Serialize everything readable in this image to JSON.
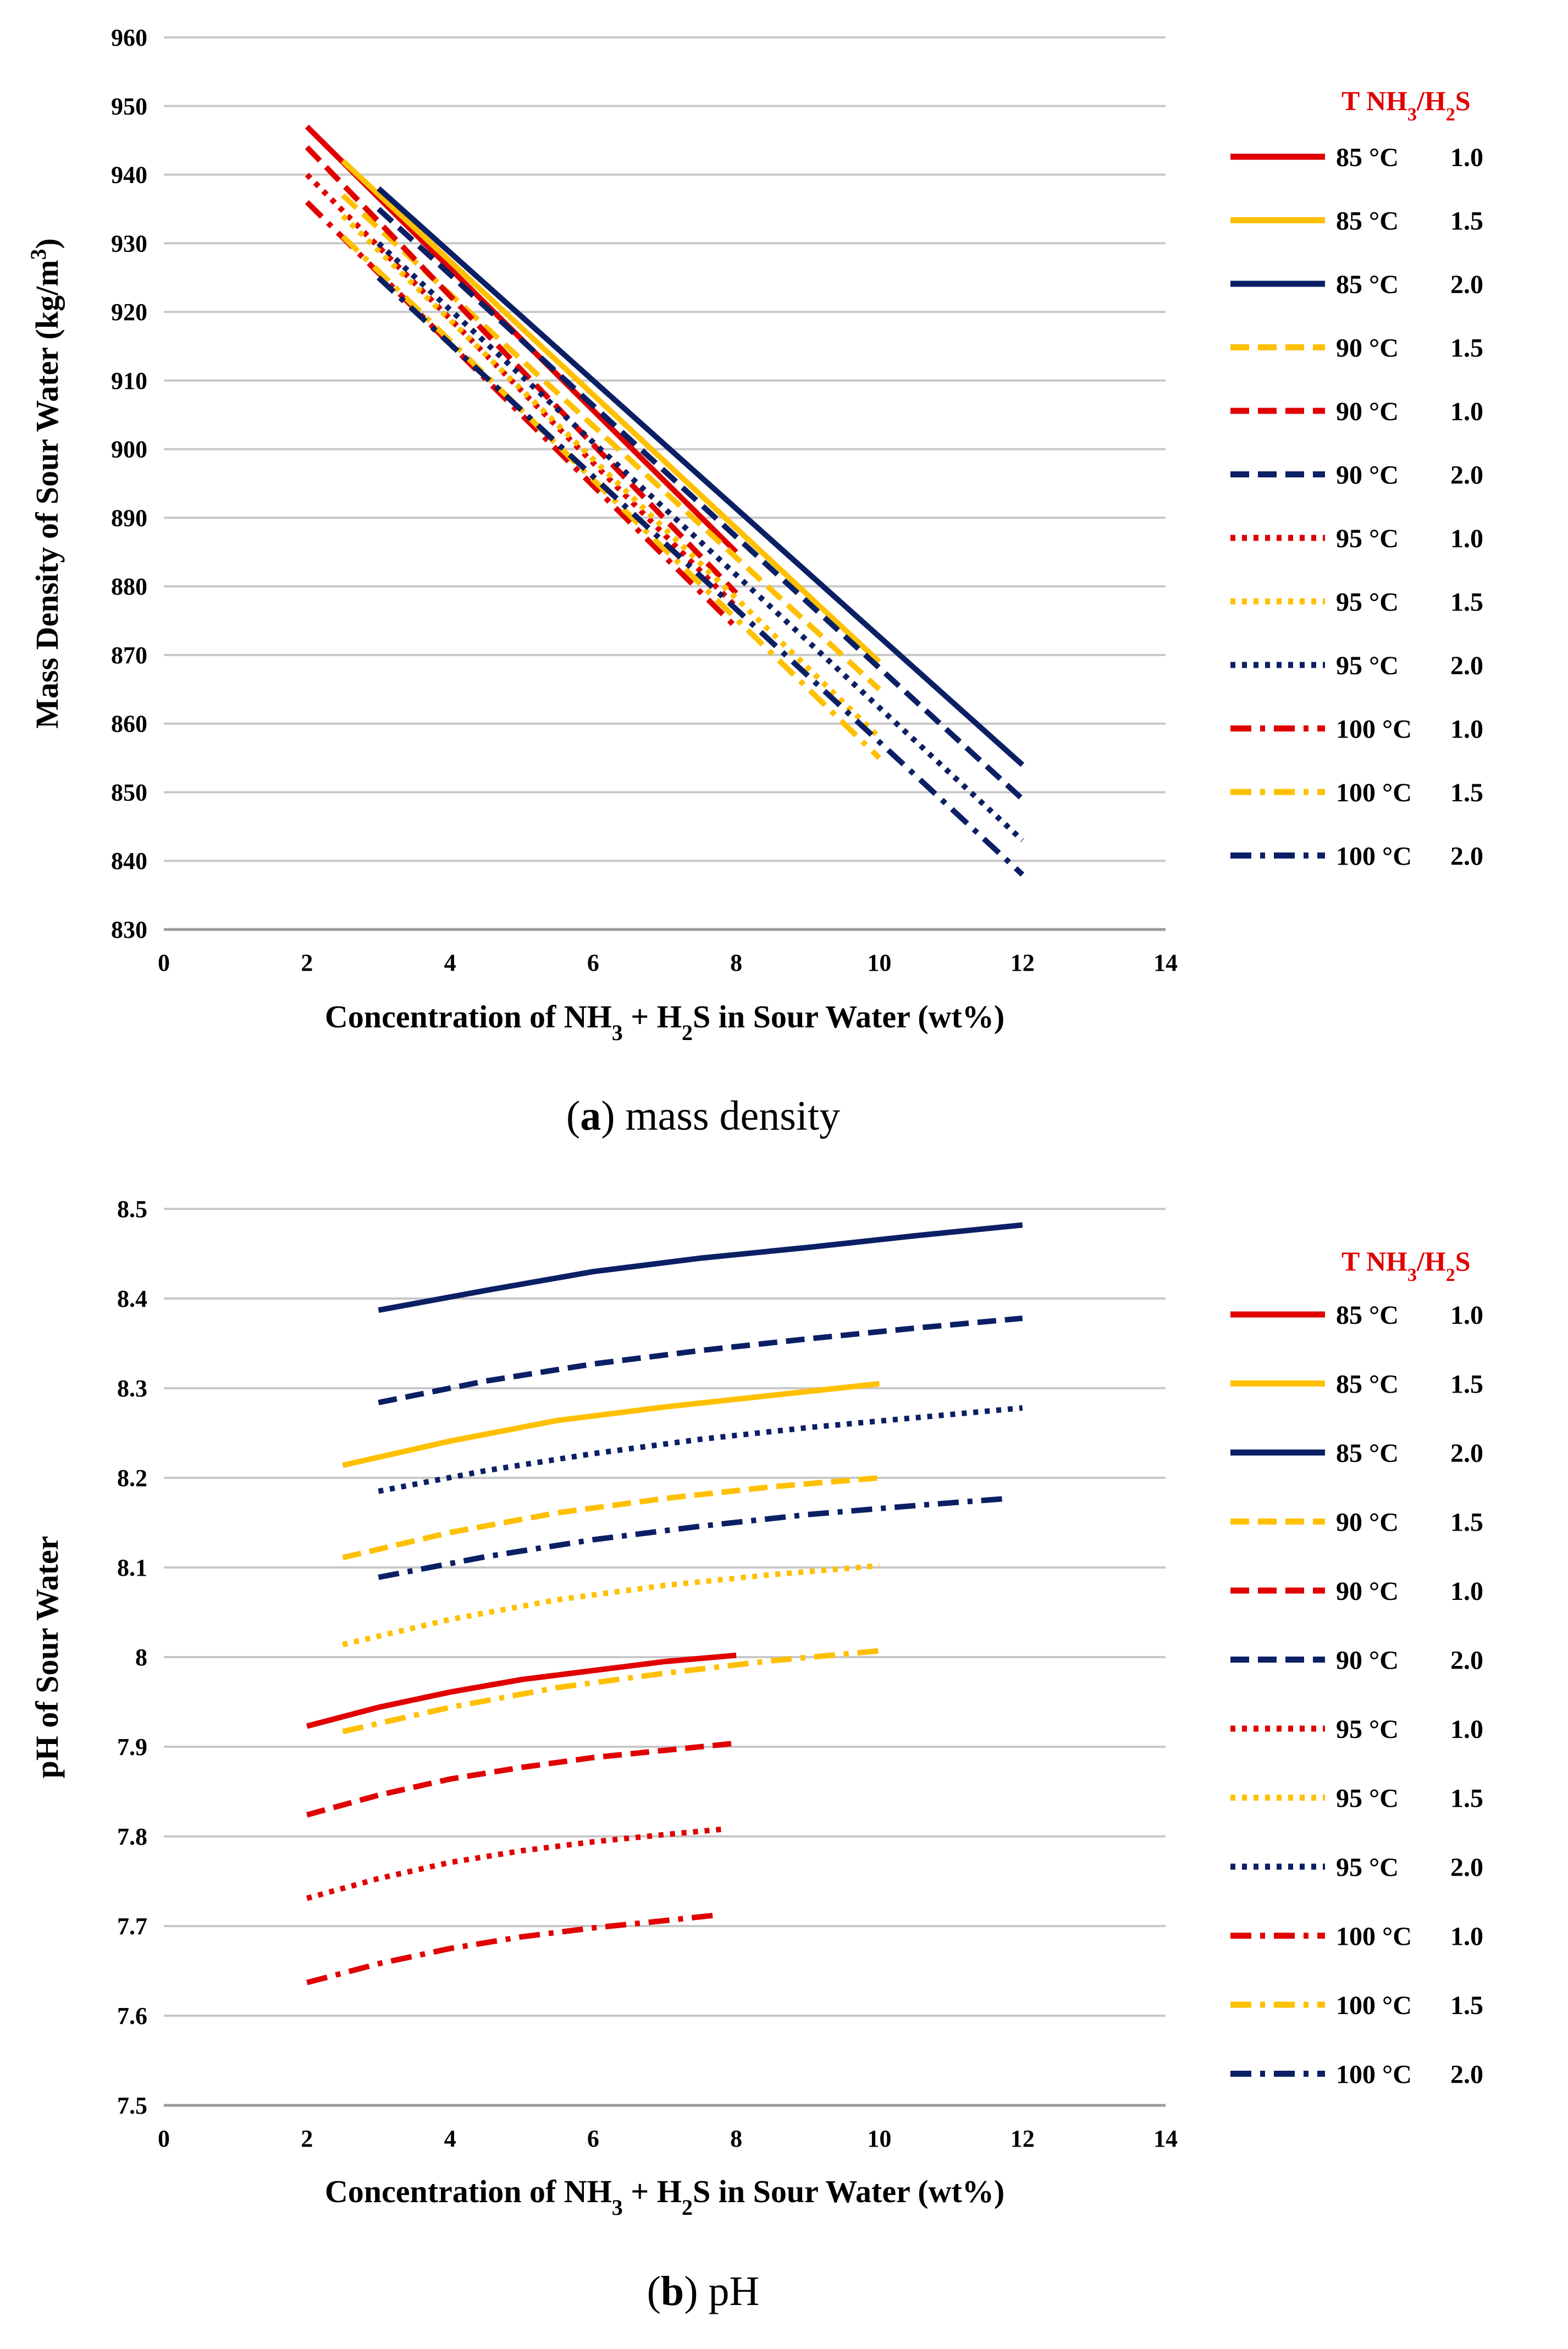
{
  "legend": {
    "head_t": "T",
    "head_nh": "NH",
    "head_3": "3",
    "head_slash": "/H",
    "head_2": "2",
    "head_s": "S"
  },
  "series_styles": [
    {
      "id": "85-1.0",
      "temp": "85 °C",
      "ratio": "1.0",
      "color": "#e00000",
      "dash": "solid"
    },
    {
      "id": "85-1.5",
      "temp": "85 °C",
      "ratio": "1.5",
      "color": "#ffc000",
      "dash": "solid"
    },
    {
      "id": "85-2.0",
      "temp": "85 °C",
      "ratio": "2.0",
      "color": "#0b1f65",
      "dash": "solid"
    },
    {
      "id": "90-1.5",
      "temp": "90 °C",
      "ratio": "1.5",
      "color": "#ffc000",
      "dash": "dash"
    },
    {
      "id": "90-1.0",
      "temp": "90 °C",
      "ratio": "1.0",
      "color": "#e00000",
      "dash": "dash"
    },
    {
      "id": "90-2.0",
      "temp": "90 °C",
      "ratio": "2.0",
      "color": "#0b1f65",
      "dash": "dash"
    },
    {
      "id": "95-1.0",
      "temp": "95 °C",
      "ratio": "1.0",
      "color": "#e00000",
      "dash": "dot"
    },
    {
      "id": "95-1.5",
      "temp": "95 °C",
      "ratio": "1.5",
      "color": "#ffc000",
      "dash": "dot"
    },
    {
      "id": "95-2.0",
      "temp": "95 °C",
      "ratio": "2.0",
      "color": "#0b1f65",
      "dash": "dot"
    },
    {
      "id": "100-1.0",
      "temp": "100 °C",
      "ratio": "1.0",
      "color": "#e00000",
      "dash": "dashdot"
    },
    {
      "id": "100-1.5",
      "temp": "100 °C",
      "ratio": "1.5",
      "color": "#ffc000",
      "dash": "dashdot"
    },
    {
      "id": "100-2.0",
      "temp": "100 °C",
      "ratio": "2.0",
      "color": "#0b1f65",
      "dash": "dashdot"
    }
  ],
  "chart_data": [
    {
      "type": "line",
      "caption_letter": "a",
      "caption_text": "mass density",
      "xlabel_parts": [
        "Concentration of NH",
        "3",
        " + H",
        "2",
        "S in Sour Water (wt%)"
      ],
      "ylabel_parts": [
        "Mass  Density of Sour Water (kg/m",
        "3",
        ")"
      ],
      "xlim": [
        0,
        14
      ],
      "ylim": [
        830,
        960
      ],
      "xticks": [
        0,
        2,
        4,
        6,
        8,
        10,
        12,
        14
      ],
      "yticks": [
        830,
        840,
        850,
        860,
        870,
        880,
        890,
        900,
        910,
        920,
        930,
        940,
        950,
        960
      ],
      "xtick_labels": [
        "0",
        "2",
        "4",
        "6",
        "8",
        "10",
        "12",
        "14"
      ],
      "ytick_labels": [
        "830",
        "840",
        "850",
        "860",
        "870",
        "880",
        "890",
        "900",
        "910",
        "920",
        "930",
        "940",
        "950",
        "960"
      ],
      "series": [
        {
          "id": "85-1.0",
          "x": [
            2,
            8
          ],
          "y": [
            947,
            885
          ]
        },
        {
          "id": "85-1.5",
          "x": [
            2.5,
            10
          ],
          "y": [
            942,
            869
          ]
        },
        {
          "id": "85-2.0",
          "x": [
            3,
            12
          ],
          "y": [
            938,
            854
          ]
        },
        {
          "id": "90-1.5",
          "x": [
            2.5,
            10
          ],
          "y": [
            937,
            865
          ]
        },
        {
          "id": "90-1.0",
          "x": [
            2,
            8
          ],
          "y": [
            944,
            879
          ]
        },
        {
          "id": "90-2.0",
          "x": [
            3,
            12
          ],
          "y": [
            935,
            849
          ]
        },
        {
          "id": "95-1.0",
          "x": [
            2,
            8
          ],
          "y": [
            940,
            877
          ]
        },
        {
          "id": "95-1.5",
          "x": [
            2.5,
            10
          ],
          "y": [
            934,
            858
          ]
        },
        {
          "id": "95-2.0",
          "x": [
            3,
            12
          ],
          "y": [
            930,
            843
          ]
        },
        {
          "id": "100-1.0",
          "x": [
            2,
            8
          ],
          "y": [
            936,
            874
          ]
        },
        {
          "id": "100-1.5",
          "x": [
            2.5,
            10
          ],
          "y": [
            931,
            855
          ]
        },
        {
          "id": "100-2.0",
          "x": [
            3,
            12
          ],
          "y": [
            925,
            838
          ]
        }
      ]
    },
    {
      "type": "line",
      "caption_letter": "b",
      "caption_text": "pH",
      "xlabel_parts": [
        "Concentration of NH",
        "3",
        " + H",
        "2",
        "S in Sour Water (wt%)"
      ],
      "ylabel_parts": [
        "pH of Sour Water"
      ],
      "xlim": [
        0,
        14
      ],
      "ylim": [
        7.5,
        8.5
      ],
      "xticks": [
        0,
        2,
        4,
        6,
        8,
        10,
        12,
        14
      ],
      "yticks": [
        7.5,
        7.6,
        7.7,
        7.8,
        7.9,
        8.0,
        8.1,
        8.2,
        8.3,
        8.4,
        8.5
      ],
      "xtick_labels": [
        "0",
        "2",
        "4",
        "6",
        "8",
        "10",
        "12",
        "14"
      ],
      "ytick_labels": [
        "7.5",
        "7.6",
        "7.7",
        "7.8",
        "7.9",
        "8",
        "8.1",
        "8.2",
        "8.3",
        "8.4",
        "8.5"
      ],
      "series": [
        {
          "id": "85-1.0",
          "x": [
            2,
            3,
            4,
            5,
            6,
            7,
            8
          ],
          "y": [
            7.923,
            7.944,
            7.961,
            7.975,
            7.985,
            7.995,
            8.002
          ]
        },
        {
          "id": "85-1.5",
          "x": [
            2.5,
            4,
            5.5,
            7,
            8.5,
            10
          ],
          "y": [
            8.214,
            8.241,
            8.264,
            8.279,
            8.292,
            8.305
          ]
        },
        {
          "id": "85-2.0",
          "x": [
            3,
            4.5,
            6,
            7.5,
            9,
            10.5,
            12
          ],
          "y": [
            8.387,
            8.409,
            8.43,
            8.445,
            8.457,
            8.47,
            8.482
          ]
        },
        {
          "id": "90-1.0",
          "x": [
            2,
            3,
            4,
            5,
            6,
            7,
            8
          ],
          "y": [
            7.824,
            7.846,
            7.864,
            7.877,
            7.888,
            7.896,
            7.904
          ]
        },
        {
          "id": "90-1.5",
          "x": [
            2.5,
            4,
            5.5,
            7,
            8.5,
            10
          ],
          "y": [
            8.111,
            8.139,
            8.161,
            8.177,
            8.19,
            8.2
          ]
        },
        {
          "id": "90-2.0",
          "x": [
            3,
            4.5,
            6,
            7.5,
            9,
            10.5,
            12
          ],
          "y": [
            8.284,
            8.308,
            8.327,
            8.342,
            8.355,
            8.367,
            8.378
          ]
        },
        {
          "id": "95-1.0",
          "x": [
            2,
            3,
            4,
            5,
            6,
            7,
            7.8
          ],
          "y": [
            7.731,
            7.753,
            7.771,
            7.784,
            7.794,
            7.802,
            7.808
          ]
        },
        {
          "id": "95-1.5",
          "x": [
            2.5,
            4,
            5.5,
            7,
            8.5,
            10
          ],
          "y": [
            8.014,
            8.042,
            8.064,
            8.08,
            8.092,
            8.102
          ]
        },
        {
          "id": "95-2.0",
          "x": [
            3,
            4.5,
            6,
            7.5,
            9,
            10.5,
            12
          ],
          "y": [
            8.185,
            8.208,
            8.227,
            8.243,
            8.256,
            8.267,
            8.278
          ]
        },
        {
          "id": "100-1.0",
          "x": [
            2,
            3,
            4,
            5,
            6,
            7,
            7.7
          ],
          "y": [
            7.637,
            7.658,
            7.675,
            7.688,
            7.698,
            7.706,
            7.712
          ]
        },
        {
          "id": "100-1.5",
          "x": [
            2.5,
            4,
            5.5,
            7,
            8.5,
            10
          ],
          "y": [
            7.917,
            7.944,
            7.966,
            7.982,
            7.996,
            8.007
          ]
        },
        {
          "id": "100-2.0",
          "x": [
            3,
            4.5,
            6,
            7.5,
            9,
            10.5,
            11.8
          ],
          "y": [
            8.089,
            8.112,
            8.131,
            8.146,
            8.159,
            8.169,
            8.177
          ]
        }
      ]
    }
  ]
}
